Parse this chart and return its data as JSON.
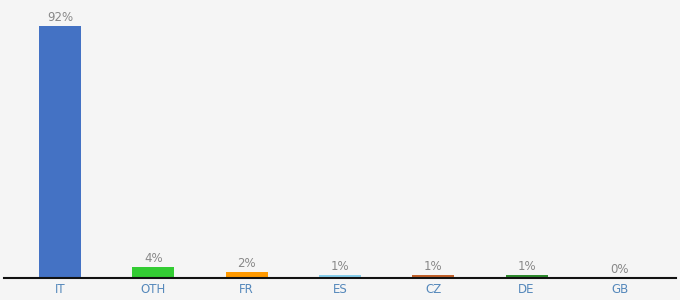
{
  "categories": [
    "IT",
    "OTH",
    "FR",
    "ES",
    "CZ",
    "DE",
    "GB"
  ],
  "values": [
    92,
    4,
    2,
    1,
    1,
    1,
    0
  ],
  "labels": [
    "92%",
    "4%",
    "2%",
    "1%",
    "1%",
    "1%",
    "0%"
  ],
  "bar_colors": [
    "#4472c4",
    "#33cc33",
    "#ff9900",
    "#87ceeb",
    "#c0602a",
    "#2e8b2e",
    "#aaaaaa"
  ],
  "ylim": [
    0,
    100
  ],
  "background_color": "#f5f5f5",
  "label_fontsize": 8.5,
  "tick_fontsize": 8.5,
  "label_color": "#888888",
  "tick_color": "#5588bb"
}
